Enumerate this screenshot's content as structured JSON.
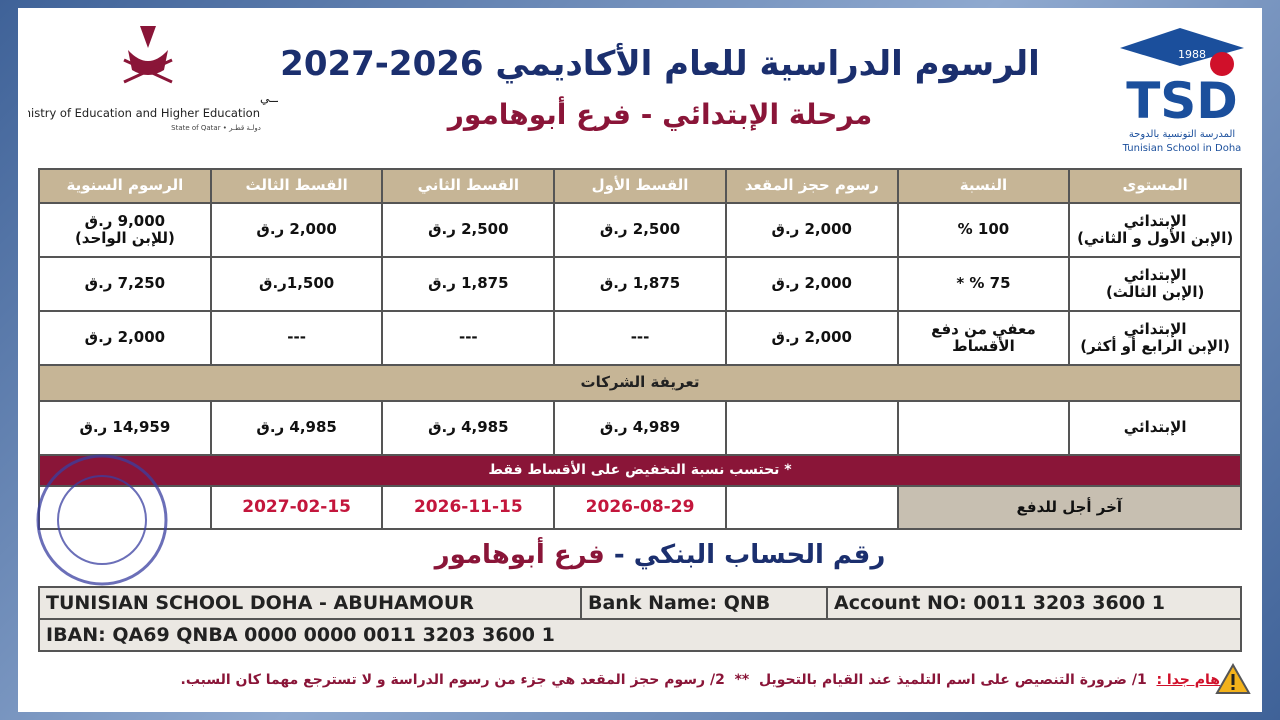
{
  "header": {
    "title": "الرسوم الدراسية للعام الأكاديمي 2026-2027",
    "subtitle": "مرحلة الإبتدائي - فرع أبوهامور",
    "ministry": {
      "arabic": "وزارة التربيـــة والتعليم العالــي",
      "english": "Ministry of Education and Higher Education",
      "state": "State of Qatar • دولـة قطـر"
    },
    "school": {
      "year": "1988",
      "acronym": "TSD",
      "arabic": "المدرسة التونسية بالدوحة",
      "english": "Tunisian School in Doha"
    }
  },
  "table": {
    "columns": [
      "المستوى",
      "النسبة",
      "رسوم حجز المقعد",
      "القسط الأول",
      "القسط الثاني",
      "القسط الثالث",
      "الرسوم السنوية"
    ],
    "rows": [
      [
        "الإبتدائي\n(الإبن الأول و الثاني)",
        "100 %",
        "2,000 ر.ق",
        "2,500 ر.ق",
        "2,500 ر.ق",
        "2,000 ر.ق",
        "9,000 ر.ق\n(للإبن الواحد)"
      ],
      [
        "الإبتدائي\n(الإبن الثالث)",
        "75 % *",
        "2,000 ر.ق",
        "1,875 ر.ق",
        "1,875 ر.ق",
        "1,500ر.ق",
        "7,250 ر.ق"
      ],
      [
        "الإبتدائي\n(الإبن الرابع أو أكثر)",
        "معفي من دفع\nالأقساط",
        "2,000 ر.ق",
        "---",
        "---",
        "---",
        "2,000 ر.ق"
      ]
    ],
    "corporate": {
      "title": "تعريفة الشركات",
      "level": "الإبتدائي",
      "installment_1": "4,989 ر.ق",
      "installment_2": "4,985 ر.ق",
      "installment_3": "4,985 ر.ق",
      "annual": "14,959 ر.ق"
    },
    "note": "* تحتسب نسبة التخفيض على الأقساط فقط",
    "deadline": {
      "label": "آخر أجل للدفع",
      "dates": [
        "2026-08-29",
        "2026-11-15",
        "2027-02-15"
      ]
    }
  },
  "bank": {
    "heading_1": "رقم الحساب البنكي -",
    "heading_2": "فرع أبوهامور",
    "holder": "TUNISIAN SCHOOL DOHA - ABUHAMOUR",
    "bank_name": "Bank Name: QNB",
    "account": "Account NO: 0011 3203 3600 1",
    "iban": "IBAN: QA69 QNBA 0000 0000 0011 3203 3600 1"
  },
  "footer": {
    "label": "هام جدا :",
    "text": "1/ ضرورة التنصيص على اسم التلميذ عند القيام بالتحويل  **  2/ رسوم حجز المقعد هي جزء من رسوم الدراسة و لا تسترجع مهما كان السبب."
  }
}
